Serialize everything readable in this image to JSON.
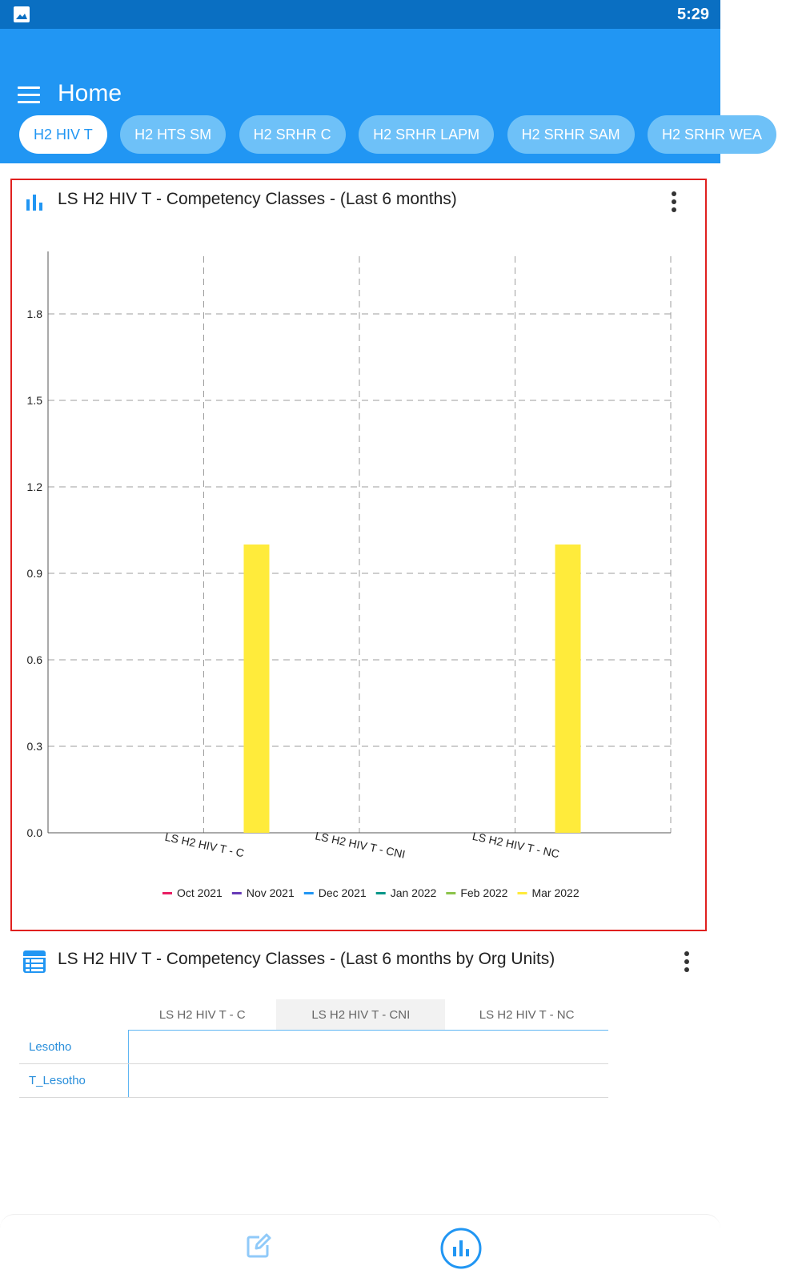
{
  "status_bar": {
    "time": "5:29"
  },
  "app_bar": {
    "title": "Home"
  },
  "tabs": [
    {
      "label": "H2 HIV T",
      "active": true
    },
    {
      "label": "H2 HTS SM",
      "active": false
    },
    {
      "label": "H2 SRHR C",
      "active": false
    },
    {
      "label": "H2 SRHR LAPM",
      "active": false
    },
    {
      "label": "H2 SRHR SAM",
      "active": false
    },
    {
      "label": "H2 SRHR WEA",
      "active": false
    }
  ],
  "chart_card": {
    "title": "LS H2 HIV T - Competency Classes - (Last 6 months)"
  },
  "chart_data": {
    "type": "bar",
    "categories": [
      "LS H2 HIV T - C",
      "LS H2 HIV T - CNI",
      "LS H2 HIV T - NC"
    ],
    "series": [
      {
        "name": "Oct 2021",
        "color": "#e91e63",
        "values": [
          0,
          0,
          0
        ]
      },
      {
        "name": "Nov 2021",
        "color": "#673ab7",
        "values": [
          0,
          0,
          0
        ]
      },
      {
        "name": "Dec 2021",
        "color": "#2196f3",
        "values": [
          0,
          0,
          0
        ]
      },
      {
        "name": "Jan 2022",
        "color": "#009688",
        "values": [
          0,
          0,
          0
        ]
      },
      {
        "name": "Feb 2022",
        "color": "#8bc34a",
        "values": [
          0,
          0,
          0
        ]
      },
      {
        "name": "Mar 2022",
        "color": "#ffeb3b",
        "values": [
          1,
          0,
          1
        ]
      }
    ],
    "yticks": [
      "0.0",
      "0.3",
      "0.6",
      "0.9",
      "1.2",
      "1.5",
      "1.8"
    ],
    "ylim": [
      0,
      2.0
    ],
    "grid": true,
    "legend_position": "bottom"
  },
  "table_card": {
    "title": "LS H2 HIV T - Competency Classes - (Last 6 months by Org Units)",
    "columns": [
      "LS H2 HIV T - C",
      "LS H2 HIV T - CNI",
      "LS H2 HIV T - NC"
    ],
    "rows": [
      {
        "label": "Lesotho"
      },
      {
        "label": "T_Lesotho"
      }
    ]
  },
  "colors": {
    "primary": "#2196f3",
    "status_bar": "#0a6fc2",
    "highlight_border": "#e0201f"
  },
  "icons": {
    "menu": "hamburger-menu-icon",
    "chart_card": "bar-chart-icon",
    "table_card": "table-icon",
    "more": "more-vert-icon",
    "nav_edit": "edit-icon",
    "nav_charts": "bar-chart-circle-icon"
  }
}
